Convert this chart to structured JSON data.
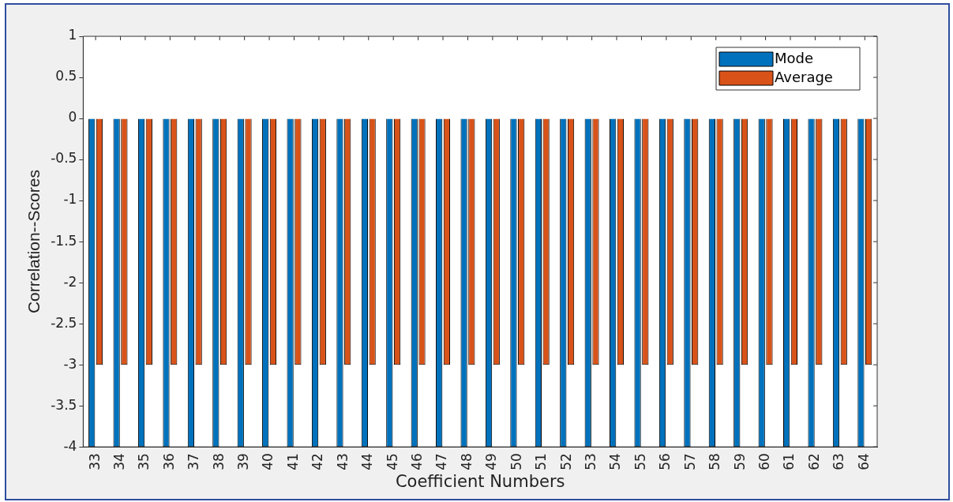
{
  "chart_data": {
    "type": "bar",
    "xlabel": "Coefficient Numbers",
    "ylabel": "Correlation--Scores",
    "categories": [
      "33",
      "34",
      "35",
      "36",
      "37",
      "38",
      "39",
      "40",
      "41",
      "42",
      "43",
      "44",
      "45",
      "46",
      "47",
      "48",
      "49",
      "50",
      "51",
      "52",
      "53",
      "54",
      "55",
      "56",
      "57",
      "58",
      "59",
      "60",
      "61",
      "62",
      "63",
      "64"
    ],
    "series": [
      {
        "name": "Mode",
        "color": "#0072bd",
        "values": [
          -4,
          -4,
          -4,
          -4,
          -4,
          -4,
          -4,
          -4,
          -4,
          -4,
          -4,
          -4,
          -4,
          -4,
          -4,
          -4,
          -4,
          -4,
          -4,
          -4,
          -4,
          -4,
          -4,
          -4,
          -4,
          -4,
          -4,
          -4,
          -4,
          -4,
          -4,
          -4
        ]
      },
      {
        "name": "Average",
        "color": "#d95319",
        "values": [
          -3,
          -3,
          -3,
          -3,
          -3,
          -3,
          -3,
          -3,
          -3,
          -3,
          -3,
          -3,
          -3,
          -3,
          -3,
          -3,
          -3,
          -3,
          -3,
          -3,
          -3,
          -3,
          -3,
          -3,
          -3,
          -3,
          -3,
          -3,
          -3,
          -3,
          -3,
          -3
        ]
      }
    ],
    "ylim": [
      -4,
      1
    ],
    "yticks": [
      -4,
      -3.5,
      -3,
      -2.5,
      -2,
      -1.5,
      -1,
      -0.5,
      0,
      0.5,
      1
    ],
    "grid": false,
    "legend": "top right"
  }
}
